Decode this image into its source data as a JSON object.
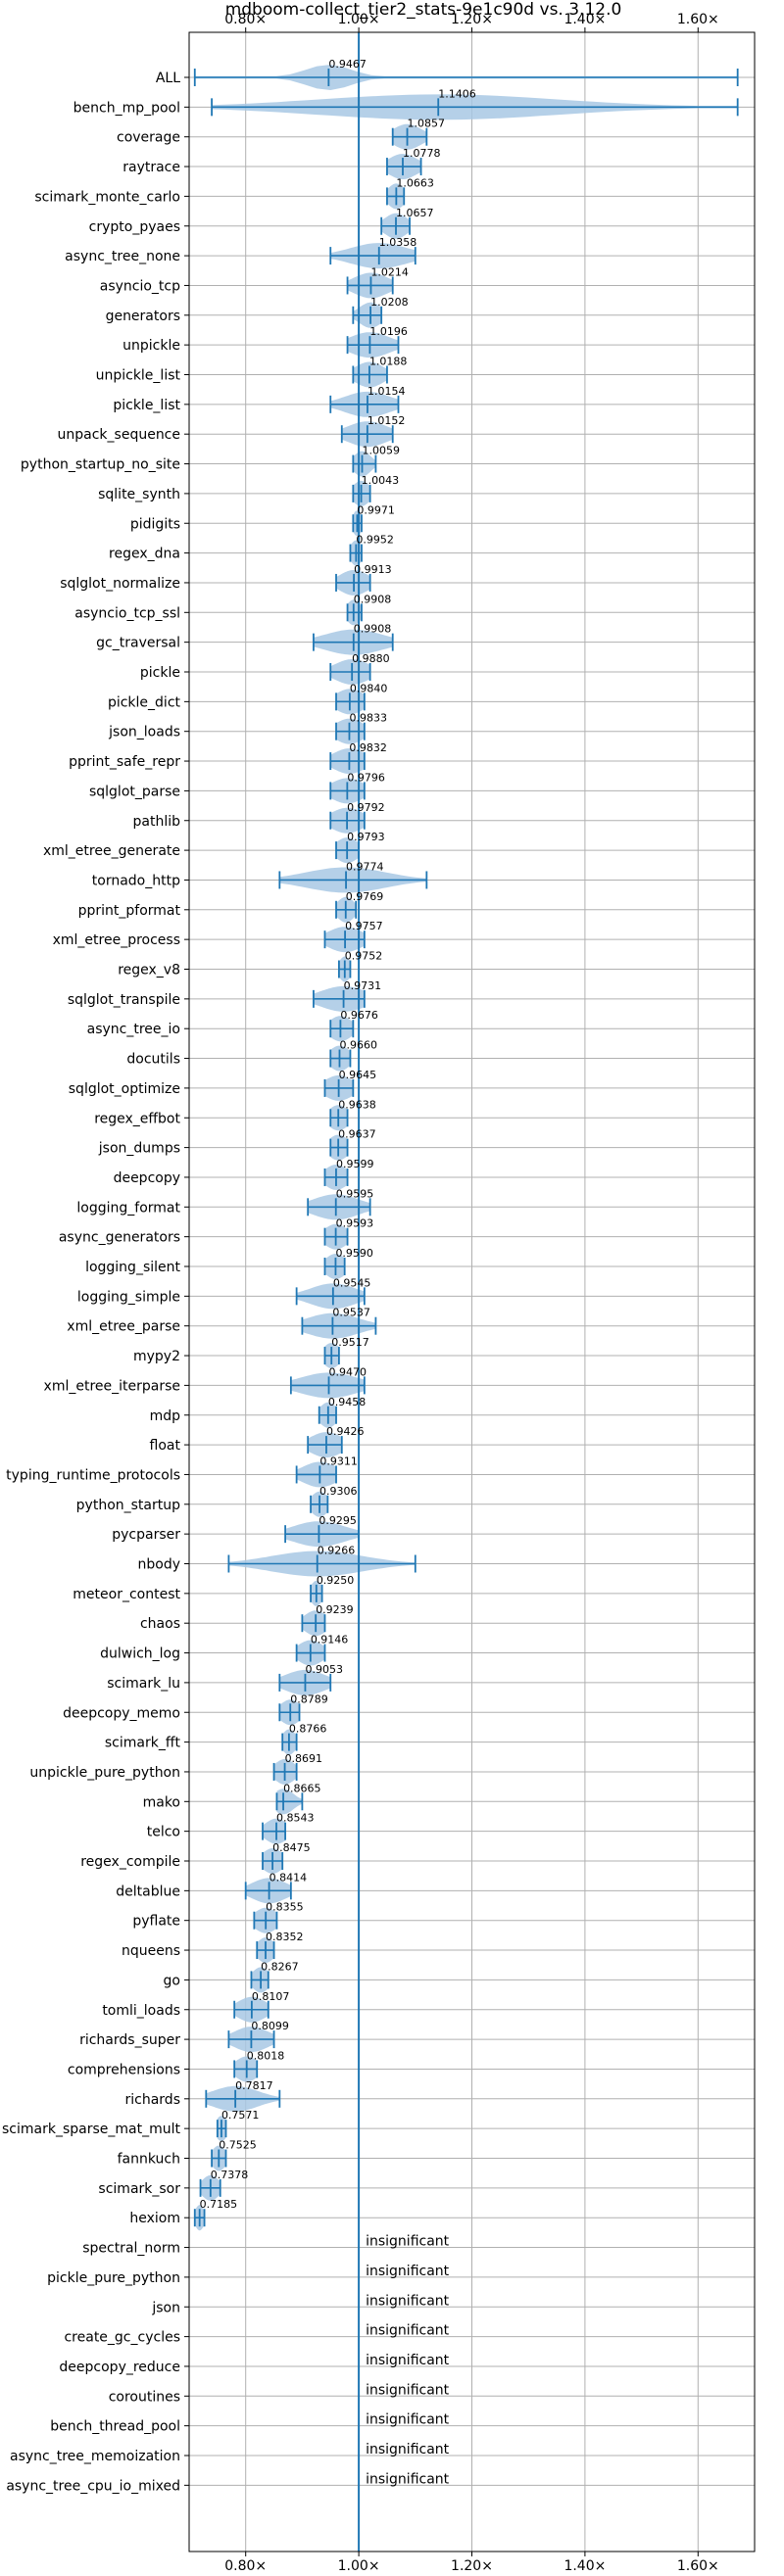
{
  "chart_data": {
    "type": "violin",
    "title": "mdboom-collect_tier2_stats-9e1c90d vs. 3.12.0",
    "xlabel": "",
    "ylabel": "",
    "xlim": [
      0.7,
      1.7
    ],
    "xticks": [
      0.8,
      1.0,
      1.2,
      1.4,
      1.6
    ],
    "xtick_labels": [
      "0.80×",
      "1.00×",
      "1.20×",
      "1.40×",
      "1.60×"
    ],
    "reference_line": 1.0,
    "grid": true,
    "colors": {
      "violin": "#a8c8e4",
      "line": "#1f77b4",
      "grid": "#b0b0b0"
    },
    "insignificant_text": "insignificant",
    "benchmarks": [
      {
        "name": "ALL",
        "label": "0.9467",
        "median": 0.9467,
        "min": 0.71,
        "max": 1.67,
        "spread": 0.04
      },
      {
        "name": "bench_mp_pool",
        "label": "1.1406",
        "median": 1.1406,
        "min": 0.74,
        "max": 1.67,
        "spread": 0.21
      },
      {
        "name": "coverage",
        "label": "1.0857",
        "median": 1.0857,
        "min": 1.06,
        "max": 1.12,
        "spread": 0.025
      },
      {
        "name": "raytrace",
        "label": "1.0778",
        "median": 1.0778,
        "min": 1.05,
        "max": 1.11,
        "spread": 0.025
      },
      {
        "name": "scimark_monte_carlo",
        "label": "1.0663",
        "median": 1.0663,
        "min": 1.05,
        "max": 1.08,
        "spread": 0.015
      },
      {
        "name": "crypto_pyaes",
        "label": "1.0657",
        "median": 1.0657,
        "min": 1.04,
        "max": 1.09,
        "spread": 0.02
      },
      {
        "name": "async_tree_none",
        "label": "1.0358",
        "median": 1.0358,
        "min": 0.95,
        "max": 1.1,
        "spread": 0.05
      },
      {
        "name": "asyncio_tcp",
        "label": "1.0214",
        "median": 1.0214,
        "min": 0.98,
        "max": 1.06,
        "spread": 0.03
      },
      {
        "name": "generators",
        "label": "1.0208",
        "median": 1.0208,
        "min": 0.99,
        "max": 1.04,
        "spread": 0.02
      },
      {
        "name": "unpickle",
        "label": "1.0196",
        "median": 1.0196,
        "min": 0.98,
        "max": 1.07,
        "spread": 0.035
      },
      {
        "name": "unpickle_list",
        "label": "1.0188",
        "median": 1.0188,
        "min": 0.99,
        "max": 1.05,
        "spread": 0.025
      },
      {
        "name": "pickle_list",
        "label": "1.0154",
        "median": 1.0154,
        "min": 0.95,
        "max": 1.07,
        "spread": 0.04
      },
      {
        "name": "unpack_sequence",
        "label": "1.0152",
        "median": 1.0152,
        "min": 0.97,
        "max": 1.06,
        "spread": 0.035
      },
      {
        "name": "python_startup_no_site",
        "label": "1.0059",
        "median": 1.0059,
        "min": 0.99,
        "max": 1.03,
        "spread": 0.015
      },
      {
        "name": "sqlite_synth",
        "label": "1.0043",
        "median": 1.0043,
        "min": 0.99,
        "max": 1.02,
        "spread": 0.015
      },
      {
        "name": "pidigits",
        "label": "0.9971",
        "median": 0.9971,
        "min": 0.99,
        "max": 1.005,
        "spread": 0.008
      },
      {
        "name": "regex_dna",
        "label": "0.9952",
        "median": 0.9952,
        "min": 0.985,
        "max": 1.005,
        "spread": 0.01
      },
      {
        "name": "sqlglot_normalize",
        "label": "0.9913",
        "median": 0.9913,
        "min": 0.96,
        "max": 1.02,
        "spread": 0.025
      },
      {
        "name": "asyncio_tcp_ssl",
        "label": "0.9908",
        "median": 0.9908,
        "min": 0.98,
        "max": 1.005,
        "spread": 0.012
      },
      {
        "name": "gc_traversal",
        "label": "0.9908",
        "median": 0.9908,
        "min": 0.92,
        "max": 1.06,
        "spread": 0.05
      },
      {
        "name": "pickle",
        "label": "0.9880",
        "median": 0.988,
        "min": 0.95,
        "max": 1.02,
        "spread": 0.03
      },
      {
        "name": "pickle_dict",
        "label": "0.9840",
        "median": 0.984,
        "min": 0.96,
        "max": 1.01,
        "spread": 0.025
      },
      {
        "name": "json_loads",
        "label": "0.9833",
        "median": 0.9833,
        "min": 0.96,
        "max": 1.01,
        "spread": 0.025
      },
      {
        "name": "pprint_safe_repr",
        "label": "0.9832",
        "median": 0.9832,
        "min": 0.95,
        "max": 1.01,
        "spread": 0.028
      },
      {
        "name": "sqlglot_parse",
        "label": "0.9796",
        "median": 0.9796,
        "min": 0.95,
        "max": 1.01,
        "spread": 0.028
      },
      {
        "name": "pathlib",
        "label": "0.9792",
        "median": 0.9792,
        "min": 0.95,
        "max": 1.01,
        "spread": 0.028
      },
      {
        "name": "xml_etree_generate",
        "label": "0.9793",
        "median": 0.9793,
        "min": 0.96,
        "max": 1.0,
        "spread": 0.02
      },
      {
        "name": "tornado_http",
        "label": "0.9774",
        "median": 0.9774,
        "min": 0.86,
        "max": 1.12,
        "spread": 0.07
      },
      {
        "name": "pprint_pformat",
        "label": "0.9769",
        "median": 0.9769,
        "min": 0.96,
        "max": 0.995,
        "spread": 0.015
      },
      {
        "name": "xml_etree_process",
        "label": "0.9757",
        "median": 0.9757,
        "min": 0.94,
        "max": 1.01,
        "spread": 0.03
      },
      {
        "name": "regex_v8",
        "label": "0.9752",
        "median": 0.9752,
        "min": 0.965,
        "max": 0.985,
        "spread": 0.01
      },
      {
        "name": "sqlglot_transpile",
        "label": "0.9731",
        "median": 0.9731,
        "min": 0.92,
        "max": 1.01,
        "spread": 0.04
      },
      {
        "name": "async_tree_io",
        "label": "0.9676",
        "median": 0.9676,
        "min": 0.95,
        "max": 0.99,
        "spread": 0.02
      },
      {
        "name": "docutils",
        "label": "0.9660",
        "median": 0.966,
        "min": 0.95,
        "max": 0.985,
        "spread": 0.018
      },
      {
        "name": "sqlglot_optimize",
        "label": "0.9645",
        "median": 0.9645,
        "min": 0.94,
        "max": 0.99,
        "spread": 0.025
      },
      {
        "name": "regex_effbot",
        "label": "0.9638",
        "median": 0.9638,
        "min": 0.95,
        "max": 0.98,
        "spread": 0.018
      },
      {
        "name": "json_dumps",
        "label": "0.9637",
        "median": 0.9637,
        "min": 0.95,
        "max": 0.98,
        "spread": 0.018
      },
      {
        "name": "deepcopy",
        "label": "0.9599",
        "median": 0.9599,
        "min": 0.94,
        "max": 0.98,
        "spread": 0.02
      },
      {
        "name": "logging_format",
        "label": "0.9595",
        "median": 0.9595,
        "min": 0.91,
        "max": 1.02,
        "spread": 0.04
      },
      {
        "name": "async_generators",
        "label": "0.9593",
        "median": 0.9593,
        "min": 0.94,
        "max": 0.98,
        "spread": 0.02
      },
      {
        "name": "logging_silent",
        "label": "0.9590",
        "median": 0.959,
        "min": 0.94,
        "max": 0.975,
        "spread": 0.018
      },
      {
        "name": "logging_simple",
        "label": "0.9545",
        "median": 0.9545,
        "min": 0.89,
        "max": 1.01,
        "spread": 0.04
      },
      {
        "name": "xml_etree_parse",
        "label": "0.9537",
        "median": 0.9537,
        "min": 0.9,
        "max": 1.03,
        "spread": 0.045
      },
      {
        "name": "mypy2",
        "label": "0.9517",
        "median": 0.9517,
        "min": 0.94,
        "max": 0.965,
        "spread": 0.015
      },
      {
        "name": "xml_etree_iterparse",
        "label": "0.9470",
        "median": 0.947,
        "min": 0.88,
        "max": 1.01,
        "spread": 0.05
      },
      {
        "name": "mdp",
        "label": "0.9458",
        "median": 0.9458,
        "min": 0.93,
        "max": 0.96,
        "spread": 0.015
      },
      {
        "name": "float",
        "label": "0.9426",
        "median": 0.9426,
        "min": 0.91,
        "max": 0.97,
        "spread": 0.028
      },
      {
        "name": "typing_runtime_protocols",
        "label": "0.9311",
        "median": 0.9311,
        "min": 0.89,
        "max": 0.96,
        "spread": 0.03
      },
      {
        "name": "python_startup",
        "label": "0.9306",
        "median": 0.9306,
        "min": 0.915,
        "max": 0.945,
        "spread": 0.015
      },
      {
        "name": "pycparser",
        "label": "0.9295",
        "median": 0.9295,
        "min": 0.87,
        "max": 1.0,
        "spread": 0.045
      },
      {
        "name": "nbody",
        "label": "0.9266",
        "median": 0.9266,
        "min": 0.77,
        "max": 1.1,
        "spread": 0.08
      },
      {
        "name": "meteor_contest",
        "label": "0.9250",
        "median": 0.925,
        "min": 0.915,
        "max": 0.935,
        "spread": 0.01
      },
      {
        "name": "chaos",
        "label": "0.9239",
        "median": 0.9239,
        "min": 0.9,
        "max": 0.94,
        "spread": 0.02
      },
      {
        "name": "dulwich_log",
        "label": "0.9146",
        "median": 0.9146,
        "min": 0.89,
        "max": 0.94,
        "spread": 0.022
      },
      {
        "name": "scimark_lu",
        "label": "0.9053",
        "median": 0.9053,
        "min": 0.86,
        "max": 0.95,
        "spread": 0.035
      },
      {
        "name": "deepcopy_memo",
        "label": "0.8789",
        "median": 0.8789,
        "min": 0.86,
        "max": 0.895,
        "spread": 0.018
      },
      {
        "name": "scimark_fft",
        "label": "0.8766",
        "median": 0.8766,
        "min": 0.865,
        "max": 0.89,
        "spread": 0.012
      },
      {
        "name": "unpickle_pure_python",
        "label": "0.8691",
        "median": 0.8691,
        "min": 0.85,
        "max": 0.89,
        "spread": 0.018
      },
      {
        "name": "mako",
        "label": "0.8665",
        "median": 0.8665,
        "min": 0.855,
        "max": 0.9,
        "spread": 0.018
      },
      {
        "name": "telco",
        "label": "0.8543",
        "median": 0.8543,
        "min": 0.83,
        "max": 0.87,
        "spread": 0.02
      },
      {
        "name": "regex_compile",
        "label": "0.8475",
        "median": 0.8475,
        "min": 0.83,
        "max": 0.865,
        "spread": 0.018
      },
      {
        "name": "deltablue",
        "label": "0.8414",
        "median": 0.8414,
        "min": 0.8,
        "max": 0.88,
        "spread": 0.03
      },
      {
        "name": "pyflate",
        "label": "0.8355",
        "median": 0.8355,
        "min": 0.815,
        "max": 0.855,
        "spread": 0.02
      },
      {
        "name": "nqueens",
        "label": "0.8352",
        "median": 0.8352,
        "min": 0.82,
        "max": 0.85,
        "spread": 0.015
      },
      {
        "name": "go",
        "label": "0.8267",
        "median": 0.8267,
        "min": 0.81,
        "max": 0.84,
        "spread": 0.015
      },
      {
        "name": "tomli_loads",
        "label": "0.8107",
        "median": 0.8107,
        "min": 0.78,
        "max": 0.84,
        "spread": 0.025
      },
      {
        "name": "richards_super",
        "label": "0.8099",
        "median": 0.8099,
        "min": 0.77,
        "max": 0.85,
        "spread": 0.03
      },
      {
        "name": "comprehensions",
        "label": "0.8018",
        "median": 0.8018,
        "min": 0.78,
        "max": 0.82,
        "spread": 0.02
      },
      {
        "name": "richards",
        "label": "0.7817",
        "median": 0.7817,
        "min": 0.73,
        "max": 0.86,
        "spread": 0.04
      },
      {
        "name": "scimark_sparse_mat_mult",
        "label": "0.7571",
        "median": 0.7571,
        "min": 0.75,
        "max": 0.765,
        "spread": 0.01
      },
      {
        "name": "fannkuch",
        "label": "0.7525",
        "median": 0.7525,
        "min": 0.74,
        "max": 0.765,
        "spread": 0.012
      },
      {
        "name": "scimark_sor",
        "label": "0.7378",
        "median": 0.7378,
        "min": 0.72,
        "max": 0.755,
        "spread": 0.015
      },
      {
        "name": "hexiom",
        "label": "0.7185",
        "median": 0.7185,
        "min": 0.71,
        "max": 0.727,
        "spread": 0.008
      },
      {
        "name": "spectral_norm",
        "insignificant": true
      },
      {
        "name": "pickle_pure_python",
        "insignificant": true
      },
      {
        "name": "json",
        "insignificant": true
      },
      {
        "name": "create_gc_cycles",
        "insignificant": true
      },
      {
        "name": "deepcopy_reduce",
        "insignificant": true
      },
      {
        "name": "coroutines",
        "insignificant": true
      },
      {
        "name": "bench_thread_pool",
        "insignificant": true
      },
      {
        "name": "async_tree_memoization",
        "insignificant": true
      },
      {
        "name": "async_tree_cpu_io_mixed",
        "insignificant": true
      }
    ]
  }
}
